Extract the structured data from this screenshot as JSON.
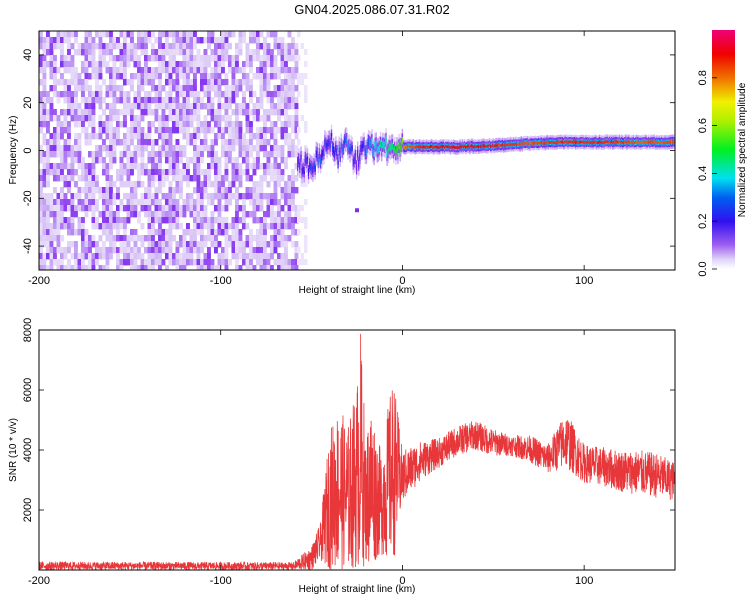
{
  "title": "GN04.2025.086.07.31.R02",
  "colorbar": {
    "label": "Normalized spectral amplitude",
    "ticks": [
      0.0,
      0.2,
      0.4,
      0.6,
      0.8
    ],
    "tick_labels": [
      "0.0",
      "0.2",
      "0.4",
      "0.6",
      "0.8"
    ],
    "range": [
      0,
      1
    ]
  },
  "chart_data": [
    {
      "type": "heatmap",
      "xlabel": "Height of straight line (km)",
      "ylabel": "Frequency (Hz)",
      "xlim": [
        -200,
        150
      ],
      "ylim": [
        -50,
        50
      ],
      "x_ticks": [
        -200,
        -100,
        0,
        100
      ],
      "x_tick_labels": [
        "-200",
        "-100",
        "0",
        "100"
      ],
      "y_ticks": [
        -40,
        -20,
        0,
        20,
        40
      ],
      "y_tick_labels": [
        "-40",
        "-20",
        "0",
        "20",
        "40"
      ],
      "colormap": [
        "#ffffff",
        "#d8c4f6",
        "#8c3cf0",
        "#3c10f0",
        "#00d6f0",
        "#00f000",
        "#f0f000",
        "#f06000",
        "#f00000",
        "#f00078"
      ],
      "noise_region_x": [
        -200,
        -58
      ],
      "signal_track": [
        {
          "x": -58,
          "y": -5,
          "amp": 0.35
        },
        {
          "x": -52,
          "y": -7,
          "amp": 0.4
        },
        {
          "x": -46,
          "y": -3,
          "amp": 0.45
        },
        {
          "x": -40,
          "y": 5,
          "amp": 0.4
        },
        {
          "x": -36,
          "y": -2,
          "amp": 0.45
        },
        {
          "x": -30,
          "y": 3,
          "amp": 0.5
        },
        {
          "x": -26,
          "y": -6,
          "amp": 0.35
        },
        {
          "x": -22,
          "y": 2,
          "amp": 0.45
        },
        {
          "x": -15,
          "y": 1,
          "amp": 0.55
        },
        {
          "x": -8,
          "y": 1.5,
          "amp": 0.6
        },
        {
          "x": 0,
          "y": 1.5,
          "amp": 0.75
        },
        {
          "x": 10,
          "y": 1.5,
          "amp": 0.85
        },
        {
          "x": 30,
          "y": 1.5,
          "amp": 0.9
        },
        {
          "x": 50,
          "y": 2,
          "amp": 0.85
        },
        {
          "x": 70,
          "y": 3,
          "amp": 0.8
        },
        {
          "x": 90,
          "y": 3.5,
          "amp": 0.85
        },
        {
          "x": 110,
          "y": 3.5,
          "amp": 0.85
        },
        {
          "x": 130,
          "y": 3.5,
          "amp": 0.8
        },
        {
          "x": 150,
          "y": 3.5,
          "amp": 0.8
        }
      ],
      "outliers": [
        {
          "x": -25,
          "y": -25,
          "amp": 0.25
        }
      ]
    },
    {
      "type": "line",
      "xlabel": "Height of straight line (km)",
      "ylabel": "SNR (10 * v/v)",
      "xlim": [
        -200,
        150
      ],
      "ylim": [
        0,
        8000
      ],
      "x_ticks": [
        -200,
        -100,
        0,
        100
      ],
      "x_tick_labels": [
        "-200",
        "-100",
        "0",
        "100"
      ],
      "y_ticks": [
        2000,
        4000,
        6000,
        8000
      ],
      "y_tick_labels": [
        "2000",
        "4000",
        "6000",
        "8000"
      ],
      "line_color": "#e8373a",
      "envelope": [
        {
          "x": -200,
          "low": 0,
          "high": 280
        },
        {
          "x": -60,
          "low": 0,
          "high": 260
        },
        {
          "x": -50,
          "low": 0,
          "high": 800
        },
        {
          "x": -45,
          "low": 300,
          "high": 1600
        },
        {
          "x": -40,
          "low": 0,
          "high": 4700
        },
        {
          "x": -35,
          "low": 0,
          "high": 5500
        },
        {
          "x": -30,
          "low": 0,
          "high": 4800
        },
        {
          "x": -25,
          "low": 0,
          "high": 6200
        },
        {
          "x": -23,
          "low": 0,
          "high": 8000
        },
        {
          "x": -20,
          "low": 200,
          "high": 4200
        },
        {
          "x": -18,
          "low": 0,
          "high": 5800
        },
        {
          "x": -12,
          "low": 500,
          "high": 4000
        },
        {
          "x": -5,
          "low": 200,
          "high": 6500
        },
        {
          "x": 0,
          "low": 2200,
          "high": 4000
        },
        {
          "x": 10,
          "low": 3000,
          "high": 4300
        },
        {
          "x": 20,
          "low": 3400,
          "high": 4400
        },
        {
          "x": 30,
          "low": 3800,
          "high": 4800
        },
        {
          "x": 40,
          "low": 4000,
          "high": 5000
        },
        {
          "x": 50,
          "low": 3800,
          "high": 4700
        },
        {
          "x": 60,
          "low": 3800,
          "high": 4500
        },
        {
          "x": 70,
          "low": 3600,
          "high": 4500
        },
        {
          "x": 80,
          "low": 3200,
          "high": 4200
        },
        {
          "x": 90,
          "low": 3400,
          "high": 5300
        },
        {
          "x": 100,
          "low": 2900,
          "high": 4200
        },
        {
          "x": 110,
          "low": 2800,
          "high": 4100
        },
        {
          "x": 120,
          "low": 2600,
          "high": 4000
        },
        {
          "x": 130,
          "low": 2500,
          "high": 4000
        },
        {
          "x": 140,
          "low": 2400,
          "high": 3900
        },
        {
          "x": 150,
          "low": 2300,
          "high": 3600
        }
      ]
    }
  ]
}
